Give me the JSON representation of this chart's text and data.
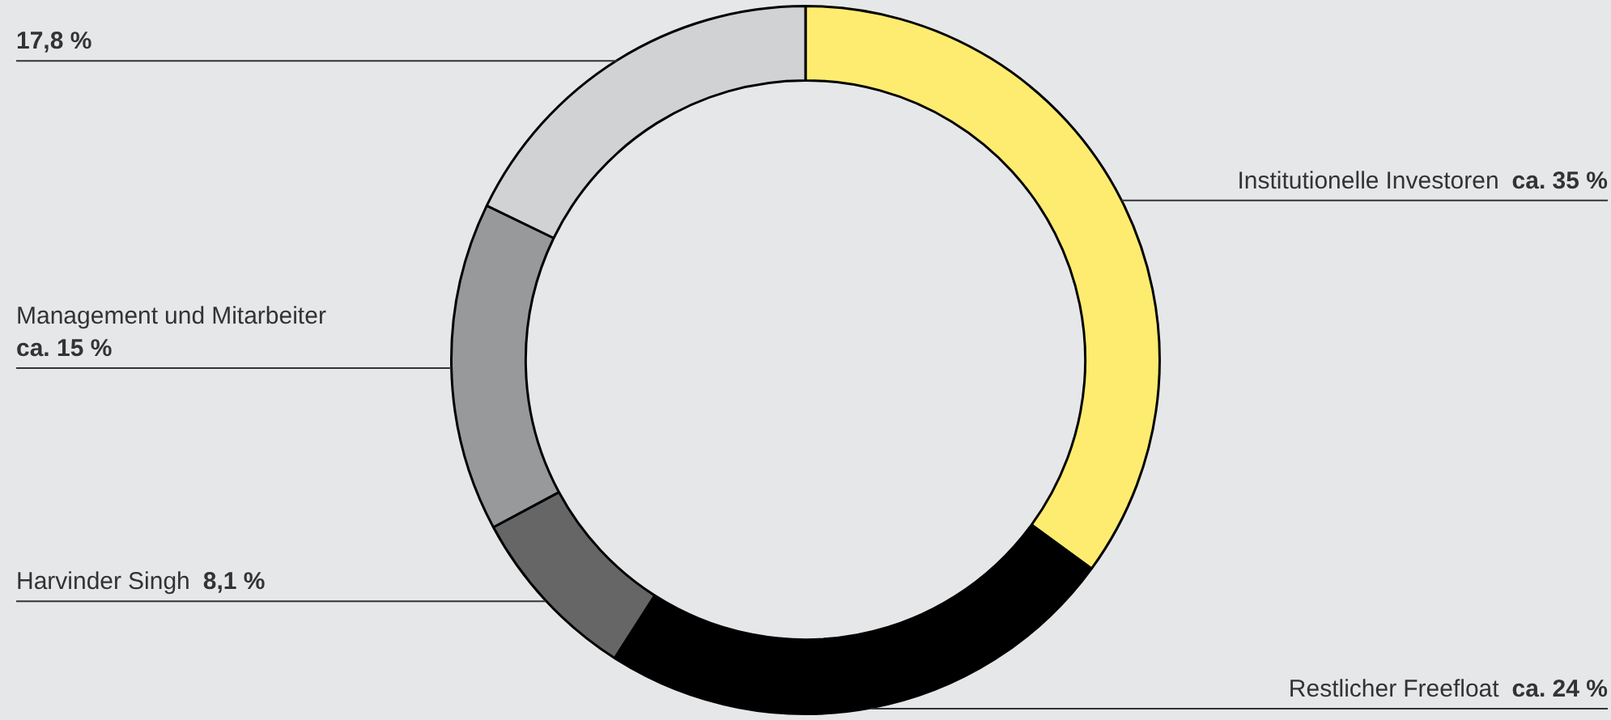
{
  "chart_data": {
    "type": "donut",
    "categories": [
      "Institutionelle Investoren",
      "Restlicher Freefloat",
      "Harvinder Singh",
      "Management und Mitarbeiter",
      null
    ],
    "values": [
      35,
      24,
      8.1,
      15,
      17.8
    ],
    "colors": [
      "#fdec6f",
      "#000000",
      "#666666",
      "#98999b",
      "#d1d2d4"
    ],
    "value_labels": [
      "ca. 35 %",
      "ca. 24 %",
      "8,1 %",
      "ca. 15 %",
      "17,8 %"
    ],
    "legend": false
  }
}
